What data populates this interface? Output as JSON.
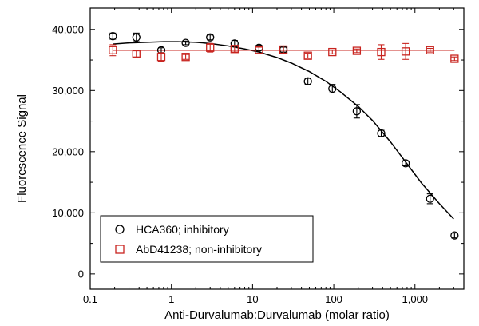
{
  "chart_data": {
    "type": "scatter",
    "xlabel": "Anti-Durvalumab:Durvalumab (molar ratio)",
    "ylabel": "Fluorescence Signal",
    "xscale": "log",
    "xlim": [
      0.1,
      4000
    ],
    "ylim": [
      -2500,
      43500
    ],
    "x_ticks": [
      0.1,
      1,
      10,
      100,
      1000
    ],
    "x_tick_labels": [
      "0.1",
      "1",
      "10",
      "100",
      "1,000"
    ],
    "y_ticks": [
      0,
      10000,
      20000,
      30000,
      40000
    ],
    "y_tick_labels": [
      "0",
      "10,000",
      "20,000",
      "30,000",
      "40,000"
    ],
    "grid": false,
    "legend_position": "bottom-left",
    "series": [
      {
        "name": "HCA360; inhibitory",
        "marker": "circle",
        "color": "#000000",
        "x": [
          0.19,
          0.37,
          0.75,
          1.5,
          3,
          6,
          12,
          24,
          48,
          96,
          192,
          384,
          768,
          1536,
          3072
        ],
        "y": [
          38900,
          38700,
          36600,
          37800,
          38700,
          37700,
          37000,
          36700,
          31500,
          30300,
          26600,
          23000,
          18100,
          12300,
          6300
        ],
        "err": [
          500,
          700,
          400,
          300,
          400,
          500,
          400,
          400,
          500,
          700,
          1100,
          500,
          400,
          800,
          400
        ],
        "fit": {
          "x": [
            0.19,
            0.3,
            0.5,
            0.8,
            1.2,
            2,
            3,
            5,
            8,
            12,
            20,
            30,
            50,
            80,
            120,
            200,
            300,
            500,
            800,
            1200,
            2000,
            3000
          ],
          "y": [
            37600,
            37800,
            37900,
            38000,
            38000,
            37900,
            37700,
            37300,
            36800,
            36300,
            35400,
            34500,
            33100,
            31500,
            29800,
            27400,
            25100,
            21600,
            18000,
            14900,
            11500,
            9000
          ]
        }
      },
      {
        "name": "AbD41238; non-inhibitory",
        "marker": "square",
        "color": "#c8241f",
        "x": [
          0.19,
          0.37,
          0.75,
          1.5,
          3,
          6,
          12,
          24,
          48,
          96,
          192,
          384,
          768,
          1536,
          3072
        ],
        "y": [
          36600,
          36000,
          35500,
          35500,
          37000,
          36800,
          36600,
          36700,
          35700,
          36300,
          36500,
          36300,
          36400,
          36600,
          35200
        ],
        "err": [
          900,
          500,
          700,
          400,
          700,
          500,
          500,
          600,
          400,
          300,
          300,
          1200,
          1300,
          300,
          300
        ],
        "fit": {
          "x": [
            0.19,
            3072
          ],
          "y": [
            36600,
            36600
          ]
        }
      }
    ]
  }
}
